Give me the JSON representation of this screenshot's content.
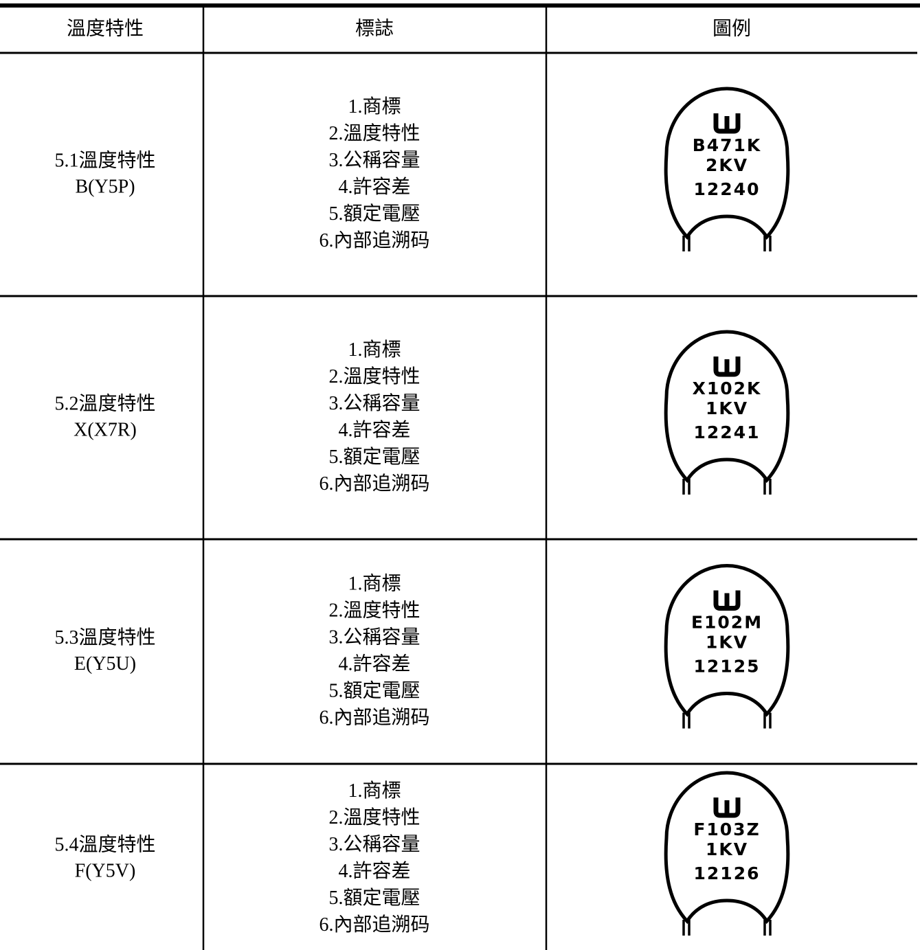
{
  "table": {
    "header": [
      "溫度特性",
      "標誌",
      "圖例"
    ],
    "rows": [
      {
        "characteristic": [
          "5.1溫度特性",
          "B(Y5P)"
        ],
        "marking": [
          "1.商標",
          "2.溫度特性",
          "3.公稱容量",
          "4.許容差",
          "5.額定電壓",
          "6.內部追溯码"
        ],
        "legend": [
          "B471K",
          "2KV",
          "12240"
        ]
      },
      {
        "characteristic": [
          "5.2溫度特性",
          "X(X7R)"
        ],
        "marking": [
          "1.商標",
          "2.溫度特性",
          "3.公稱容量",
          "4.許容差",
          "5.額定電壓",
          "6.內部追溯码"
        ],
        "legend": [
          "X102K",
          "1KV",
          "12241"
        ]
      },
      {
        "characteristic": [
          "5.3溫度特性",
          "E(Y5U)"
        ],
        "marking": [
          "1.商標",
          "2.溫度特性",
          "3.公稱容量",
          "4.許容差",
          "5.額定電壓",
          "6.內部追溯码"
        ],
        "legend": [
          "E102M",
          "1KV",
          "12125"
        ]
      },
      {
        "characteristic": [
          "5.4溫度特性",
          "F(Y5V)"
        ],
        "marking": [
          "1.商標",
          "2.溫度特性",
          "3.公稱容量",
          "4.許容差",
          "5.額定電壓",
          "6.內部追溯码"
        ],
        "legend": [
          "F103Z",
          "1KV",
          "12126"
        ]
      }
    ]
  }
}
